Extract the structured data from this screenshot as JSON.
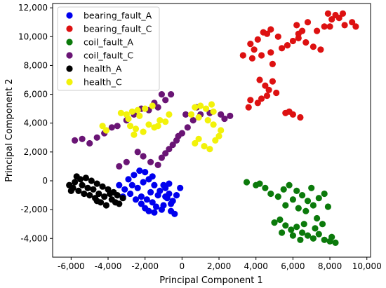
{
  "chart_data": {
    "type": "scatter",
    "xlabel": "Principal Component 1",
    "ylabel": "Principal Component 2",
    "xlim": [
      -7000,
      10200
    ],
    "ylim": [
      -5300,
      12300
    ],
    "xticks": [
      -6000,
      -4000,
      -2000,
      0,
      2000,
      4000,
      6000,
      8000,
      10000
    ],
    "xtick_labels": [
      "-6,000",
      "-4,000",
      "-2,000",
      "0",
      "2,000",
      "4,000",
      "6,000",
      "8,000",
      "10,000"
    ],
    "yticks": [
      -4000,
      -2000,
      0,
      2000,
      4000,
      6000,
      8000,
      10000,
      12000
    ],
    "ytick_labels": [
      "-4,000",
      "-2,000",
      "0",
      "2,000",
      "4,000",
      "6,000",
      "8,000",
      "10,000",
      "12,000"
    ],
    "grid": false,
    "legend_position": "top-left",
    "series": [
      {
        "name": "bearing_fault_A",
        "color": "#0000ee",
        "points": [
          [
            -3400,
            -300
          ],
          [
            -3100,
            -600
          ],
          [
            -2800,
            -900
          ],
          [
            -2500,
            -1300
          ],
          [
            -2200,
            -1600
          ],
          [
            -2000,
            -1900
          ],
          [
            -1800,
            -2100
          ],
          [
            -1600,
            -1500
          ],
          [
            -1300,
            -1000
          ],
          [
            -1000,
            -1700
          ],
          [
            -800,
            -1200
          ],
          [
            -600,
            -2100
          ],
          [
            -400,
            -2300
          ],
          [
            -2600,
            400
          ],
          [
            -2300,
            700
          ],
          [
            -2000,
            600
          ],
          [
            -1800,
            100
          ],
          [
            -1500,
            -300
          ],
          [
            -1200,
            -700
          ],
          [
            -900,
            -500
          ],
          [
            -700,
            -900
          ],
          [
            -500,
            -1400
          ],
          [
            -300,
            -1000
          ],
          [
            -100,
            -500
          ],
          [
            -2900,
            100
          ],
          [
            -3200,
            -1100
          ],
          [
            -2400,
            -500
          ],
          [
            -2100,
            -100
          ],
          [
            -1700,
            -800
          ],
          [
            -1400,
            -1800
          ],
          [
            -1100,
            -2000
          ],
          [
            -900,
            -1100
          ],
          [
            -600,
            -1600
          ],
          [
            -2700,
            -300
          ],
          [
            -1900,
            -1300
          ],
          [
            -1500,
            -2200
          ],
          [
            -1000,
            -300
          ],
          [
            -700,
            -200
          ],
          [
            -2200,
            -1100
          ],
          [
            -1600,
            300
          ]
        ]
      },
      {
        "name": "bearing_fault_C",
        "color": "#dd1111",
        "points": [
          [
            3300,
            8700
          ],
          [
            3800,
            8500
          ],
          [
            4300,
            8700
          ],
          [
            4800,
            8900
          ],
          [
            3700,
            9500
          ],
          [
            4100,
            9800
          ],
          [
            4400,
            10300
          ],
          [
            4800,
            10500
          ],
          [
            5200,
            10000
          ],
          [
            5700,
            9400
          ],
          [
            6000,
            9700
          ],
          [
            6300,
            9900
          ],
          [
            6700,
            9600
          ],
          [
            7100,
            9300
          ],
          [
            7500,
            9100
          ],
          [
            4900,
            8100
          ],
          [
            6300,
            10200
          ],
          [
            6500,
            10400
          ],
          [
            7300,
            10400
          ],
          [
            7700,
            10700
          ],
          [
            8100,
            11200
          ],
          [
            8500,
            11300
          ],
          [
            8800,
            10800
          ],
          [
            9200,
            11000
          ],
          [
            9400,
            10700
          ],
          [
            7900,
            11600
          ],
          [
            8300,
            11500
          ],
          [
            8700,
            11600
          ],
          [
            6800,
            11000
          ],
          [
            6200,
            10800
          ],
          [
            4200,
            7000
          ],
          [
            4500,
            6600
          ],
          [
            4700,
            6300
          ],
          [
            4900,
            6900
          ],
          [
            5100,
            6100
          ],
          [
            4300,
            5700
          ],
          [
            4600,
            5900
          ],
          [
            4100,
            5400
          ],
          [
            3700,
            5600
          ],
          [
            5600,
            4700
          ],
          [
            6000,
            4600
          ],
          [
            6400,
            4400
          ],
          [
            5800,
            4800
          ],
          [
            3600,
            5100
          ],
          [
            3900,
            9100
          ],
          [
            4600,
            10200
          ],
          [
            5400,
            9200
          ],
          [
            8000,
            10700
          ]
        ]
      },
      {
        "name": "coil_fault_A",
        "color": "#0b7a0b",
        "points": [
          [
            3500,
            -100
          ],
          [
            4000,
            -300
          ],
          [
            4500,
            -500
          ],
          [
            4800,
            -900
          ],
          [
            5200,
            -1100
          ],
          [
            5500,
            -600
          ],
          [
            5800,
            -300
          ],
          [
            6200,
            -700
          ],
          [
            6500,
            -1000
          ],
          [
            6800,
            -1400
          ],
          [
            7100,
            -1700
          ],
          [
            7400,
            -1200
          ],
          [
            7700,
            -900
          ],
          [
            7900,
            -1800
          ],
          [
            7000,
            -500
          ],
          [
            6000,
            -1300
          ],
          [
            5600,
            -1700
          ],
          [
            6300,
            -1900
          ],
          [
            6700,
            -2100
          ],
          [
            5300,
            -2700
          ],
          [
            5600,
            -3100
          ],
          [
            5900,
            -3400
          ],
          [
            6200,
            -3200
          ],
          [
            6500,
            -3600
          ],
          [
            6800,
            -3800
          ],
          [
            7100,
            -4000
          ],
          [
            7400,
            -3700
          ],
          [
            7700,
            -4100
          ],
          [
            8000,
            -4200
          ],
          [
            8300,
            -4300
          ],
          [
            5000,
            -2900
          ],
          [
            5400,
            -3600
          ],
          [
            6600,
            -3000
          ],
          [
            7200,
            -3300
          ],
          [
            7600,
            -3000
          ],
          [
            6000,
            -3800
          ],
          [
            6400,
            -4100
          ],
          [
            7300,
            -2600
          ],
          [
            4200,
            -200
          ],
          [
            8100,
            -3900
          ]
        ]
      },
      {
        "name": "coil_fault_C",
        "color": "#6a1575",
        "points": [
          [
            -5800,
            2800
          ],
          [
            -5400,
            2900
          ],
          [
            -5000,
            2600
          ],
          [
            -4600,
            3000
          ],
          [
            -4200,
            3300
          ],
          [
            -3800,
            3700
          ],
          [
            -3500,
            3800
          ],
          [
            -3000,
            4200
          ],
          [
            -2600,
            4600
          ],
          [
            -2200,
            5000
          ],
          [
            -1800,
            4900
          ],
          [
            -1300,
            5100
          ],
          [
            -900,
            5600
          ],
          [
            -600,
            6000
          ],
          [
            -1100,
            6000
          ],
          [
            -2400,
            2000
          ],
          [
            -2100,
            1700
          ],
          [
            -1700,
            1300
          ],
          [
            -1300,
            1100
          ],
          [
            -1100,
            1600
          ],
          [
            -900,
            1900
          ],
          [
            -700,
            2200
          ],
          [
            -500,
            2500
          ],
          [
            -300,
            2800
          ],
          [
            0,
            3300
          ],
          [
            300,
            3700
          ],
          [
            600,
            4200
          ],
          [
            1000,
            4600
          ],
          [
            -3000,
            1300
          ],
          [
            -3400,
            1000
          ],
          [
            200,
            4600
          ],
          [
            800,
            5100
          ],
          [
            1500,
            4700
          ],
          [
            2100,
            4600
          ],
          [
            2300,
            4300
          ],
          [
            2600,
            4500
          ],
          [
            -200,
            3100
          ],
          [
            -1500,
            5400
          ]
        ]
      },
      {
        "name": "health_A",
        "color": "#000000",
        "points": [
          [
            -6100,
            -300
          ],
          [
            -5800,
            -100
          ],
          [
            -5500,
            100
          ],
          [
            -5200,
            200
          ],
          [
            -4900,
            0
          ],
          [
            -4600,
            -200
          ],
          [
            -4300,
            -400
          ],
          [
            -4000,
            -600
          ],
          [
            -3700,
            -800
          ],
          [
            -3500,
            -1000
          ],
          [
            -3200,
            -1200
          ],
          [
            -5900,
            -500
          ],
          [
            -5600,
            -700
          ],
          [
            -5300,
            -900
          ],
          [
            -5000,
            -1000
          ],
          [
            -4700,
            -1200
          ],
          [
            -4400,
            -1500
          ],
          [
            -4100,
            -1700
          ],
          [
            -3800,
            -1300
          ],
          [
            -3400,
            -1600
          ],
          [
            -6000,
            -700
          ],
          [
            -5700,
            300
          ],
          [
            -5400,
            -300
          ],
          [
            -4800,
            -600
          ],
          [
            -4500,
            -900
          ],
          [
            -4200,
            -1100
          ],
          [
            -3900,
            -900
          ],
          [
            -5100,
            -500
          ],
          [
            -4600,
            -1400
          ],
          [
            -3600,
            -1500
          ]
        ]
      },
      {
        "name": "health_C",
        "color": "#f2f20a",
        "points": [
          [
            -4300,
            3800
          ],
          [
            -4100,
            3500
          ],
          [
            -3000,
            4600
          ],
          [
            -2700,
            4800
          ],
          [
            -2400,
            4900
          ],
          [
            -2000,
            5000
          ],
          [
            -1600,
            5200
          ],
          [
            -2900,
            4300
          ],
          [
            -2300,
            4500
          ],
          [
            -2800,
            3800
          ],
          [
            -2500,
            3600
          ],
          [
            -2100,
            3400
          ],
          [
            -1800,
            3900
          ],
          [
            -1500,
            3700
          ],
          [
            -1200,
            4200
          ],
          [
            -900,
            4100
          ],
          [
            700,
            5100
          ],
          [
            1000,
            5200
          ],
          [
            1300,
            5000
          ],
          [
            1700,
            4800
          ],
          [
            500,
            4600
          ],
          [
            900,
            4400
          ],
          [
            1400,
            4200
          ],
          [
            1700,
            3900
          ],
          [
            900,
            2900
          ],
          [
            1200,
            2400
          ],
          [
            1500,
            2200
          ],
          [
            1800,
            2800
          ],
          [
            2000,
            3100
          ],
          [
            -2600,
            3200
          ],
          [
            -1300,
            3800
          ],
          [
            -700,
            4600
          ],
          [
            -3300,
            4700
          ],
          [
            1600,
            5300
          ],
          [
            700,
            2600
          ],
          [
            2100,
            3500
          ]
        ]
      }
    ]
  }
}
